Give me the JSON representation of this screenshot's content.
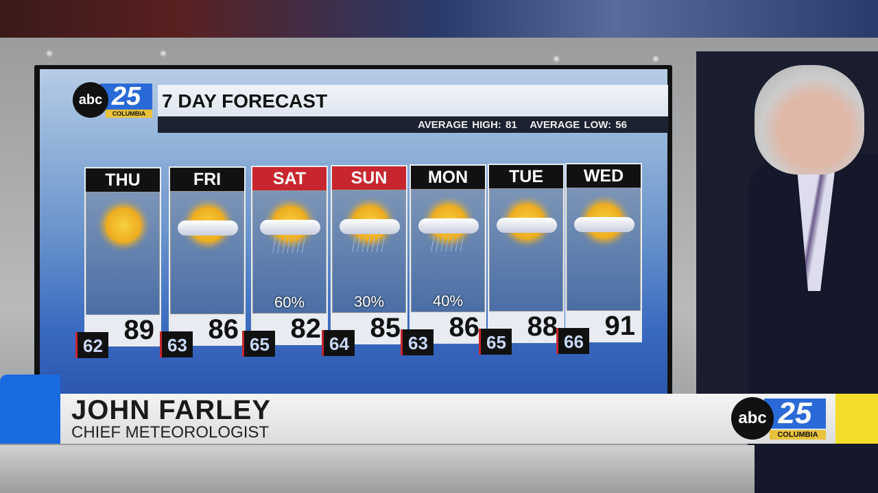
{
  "logo": {
    "network": "abc",
    "channel": "25",
    "city": "COLUMBIA"
  },
  "graphic": {
    "title": "7 DAY FORECAST",
    "average_high": "AVERAGE HIGH: 81",
    "average_low": "AVERAGE LOW: 56"
  },
  "forecast": [
    {
      "day": "THU",
      "high": "89",
      "low": "62",
      "precip": "",
      "icon": "sunny-icon",
      "weekend": false
    },
    {
      "day": "FRI",
      "high": "86",
      "low": "63",
      "precip": "",
      "icon": "partly-cloudy-icon",
      "weekend": false
    },
    {
      "day": "SAT",
      "high": "82",
      "low": "65",
      "precip": "60%",
      "icon": "rain-icon",
      "weekend": true
    },
    {
      "day": "SUN",
      "high": "85",
      "low": "64",
      "precip": "30%",
      "icon": "rain-icon",
      "weekend": true
    },
    {
      "day": "MON",
      "high": "86",
      "low": "63",
      "precip": "40%",
      "icon": "rain-icon",
      "weekend": false
    },
    {
      "day": "TUE",
      "high": "88",
      "low": "65",
      "precip": "",
      "icon": "partly-cloudy-icon",
      "weekend": false
    },
    {
      "day": "WED",
      "high": "91",
      "low": "66",
      "precip": "",
      "icon": "partly-cloudy-icon",
      "weekend": false
    }
  ],
  "lower_third": {
    "name": "JOHN FARLEY",
    "role": "CHIEF METEOROLOGIST"
  },
  "colors": {
    "weekend_header": "#c8262e",
    "brand_blue": "#1a6ae0",
    "brand_yellow": "#f2dd2a"
  }
}
